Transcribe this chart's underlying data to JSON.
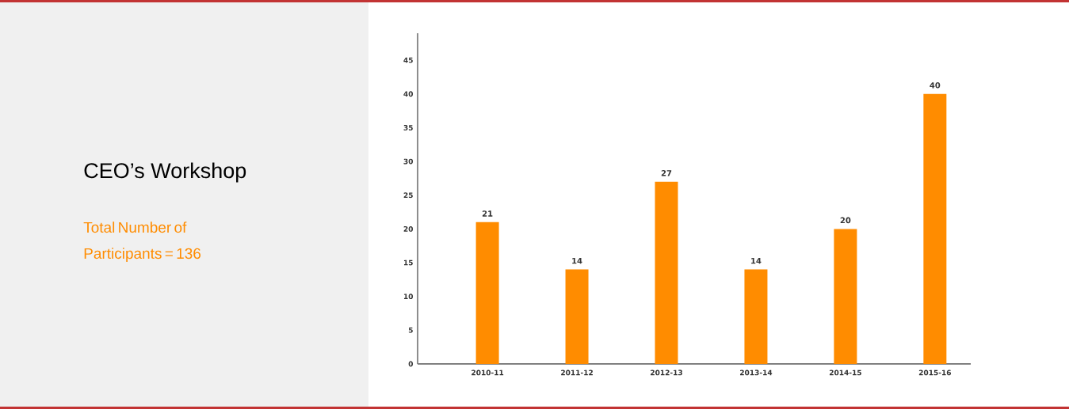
{
  "chart_data": {
    "type": "bar",
    "title": "CEO’s Workshop",
    "subtitle": "Total Number of Participants = 136",
    "categories": [
      "2010-11",
      "2011-12",
      "2012-13",
      "2013-14",
      "2014-15",
      "2015-16"
    ],
    "values": [
      21,
      14,
      27,
      14,
      20,
      40
    ],
    "color": "#ff8c00",
    "ylim": [
      0,
      49
    ],
    "yticks": [
      0,
      5,
      10,
      15,
      20,
      25,
      30,
      35,
      40,
      45
    ],
    "data_labels": true
  }
}
